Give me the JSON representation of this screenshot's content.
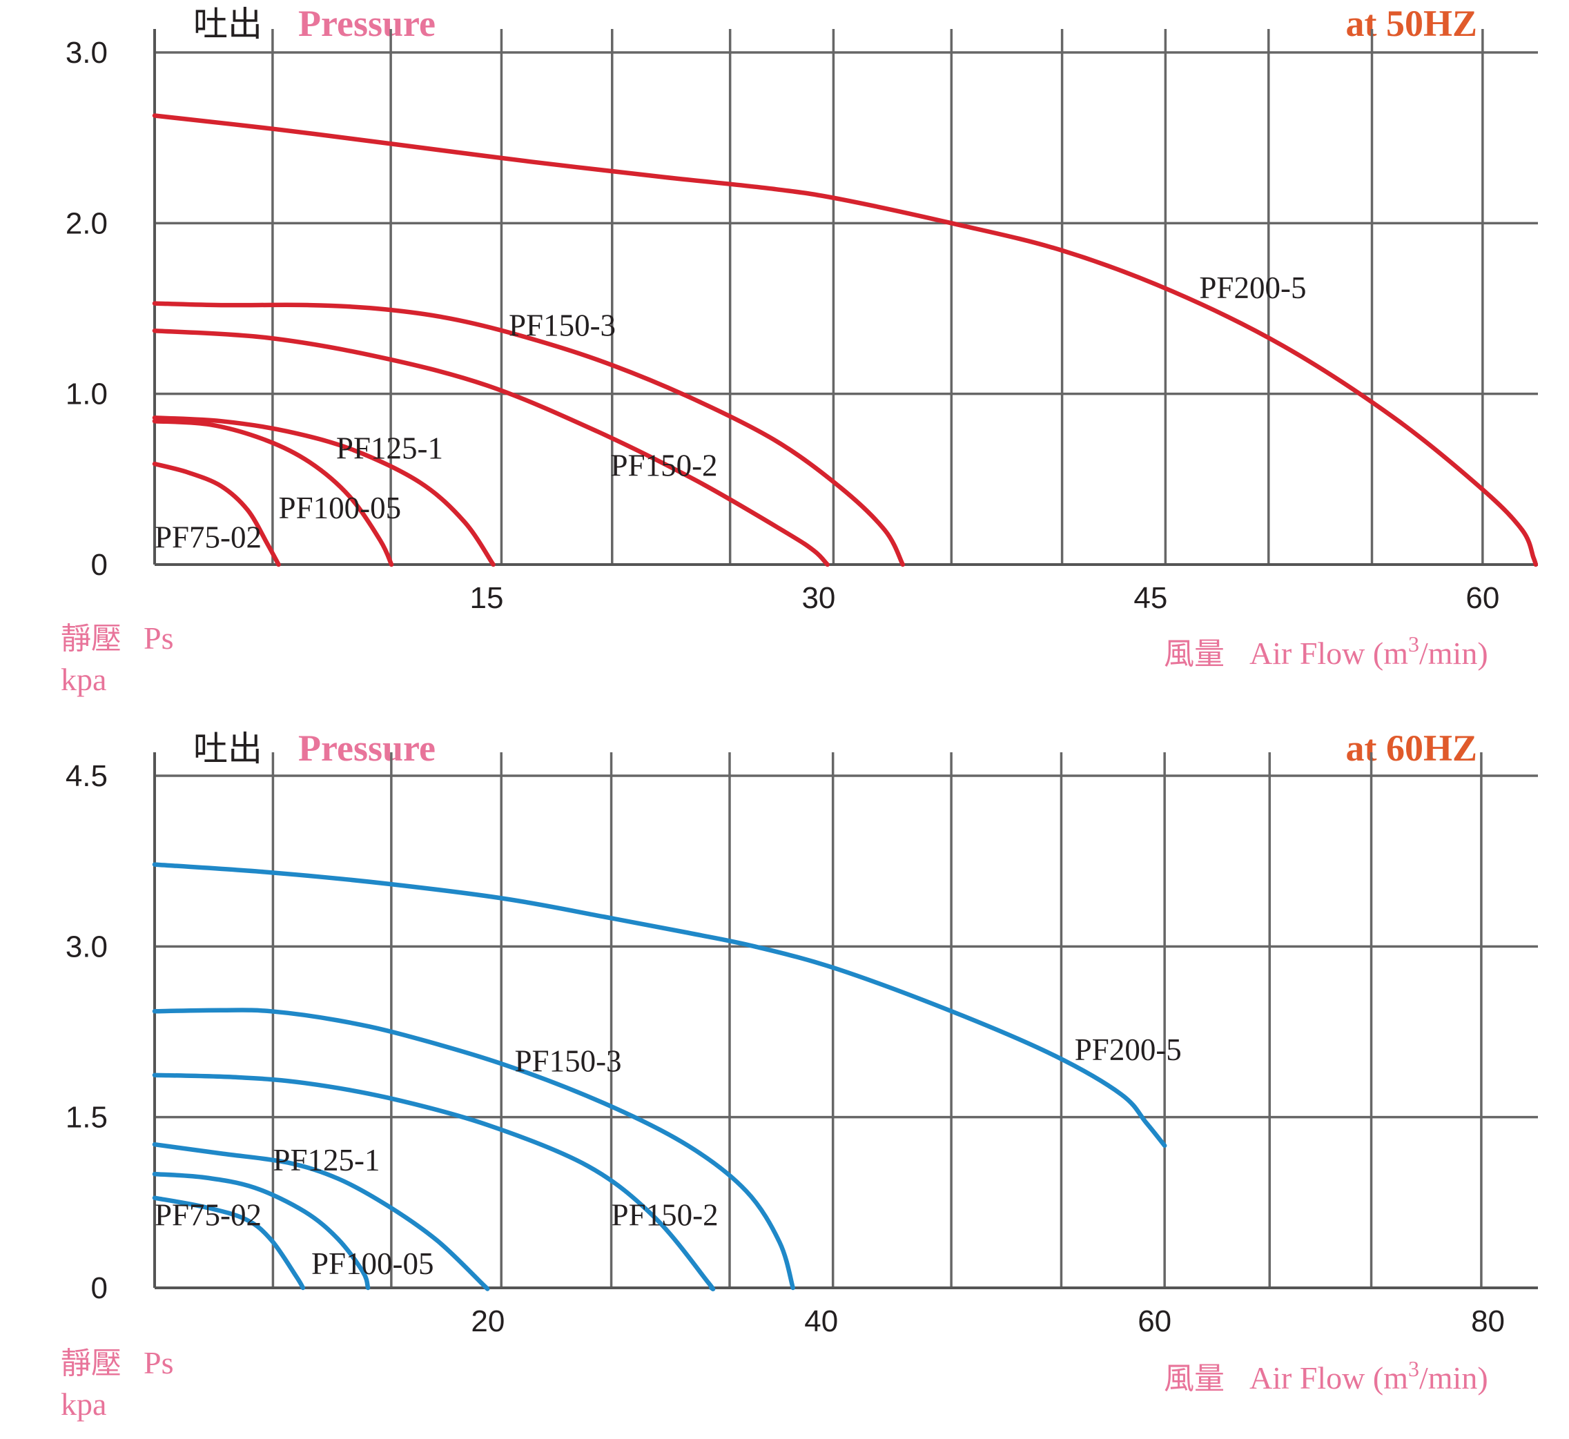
{
  "colors": {
    "pink": "#e8749a",
    "orange": "#e05a2b"
  },
  "chart_data": [
    {
      "type": "line",
      "title_cn": "吐出",
      "title_en": "Pressure",
      "frequency": "at  50HZ",
      "ylabel_cn": "靜壓",
      "ylabel_en": "Ps",
      "yunit": "kpa",
      "xlabel_cn": "風量",
      "xlabel_en": "Air Flow (m",
      "xlabel_sup": "3",
      "xlabel_end": "/min)",
      "xlim": [
        0,
        62.5
      ],
      "ylim": [
        0,
        3.0
      ],
      "x_gridlines": [
        5.33,
        10.67,
        15.67,
        20.67,
        26.0,
        30.67,
        36.0,
        41.0,
        45.67,
        50.33,
        55.0,
        60.0
      ],
      "y_gridlines": [
        0,
        1.0,
        2.0,
        3.0
      ],
      "x_ticks": [
        {
          "v": 15,
          "label": "15"
        },
        {
          "v": 30,
          "label": "30"
        },
        {
          "v": 45,
          "label": "45"
        },
        {
          "v": 60,
          "label": "60"
        }
      ],
      "y_ticks": [
        {
          "v": 0,
          "label": "0"
        },
        {
          "v": 1.0,
          "label": "1.0"
        },
        {
          "v": 2.0,
          "label": "2.0"
        },
        {
          "v": 3.0,
          "label": "3.0"
        }
      ],
      "line_color": "#d6232e",
      "series": [
        {
          "name": "PF200-5",
          "label_at": [
            47.2,
            1.56
          ],
          "points": [
            [
              0,
              2.63
            ],
            [
              5.5,
              2.55
            ],
            [
              11,
              2.46
            ],
            [
              17,
              2.36
            ],
            [
              23,
              2.27
            ],
            [
              28,
              2.2
            ],
            [
              31,
              2.14
            ],
            [
              36,
              2.0
            ],
            [
              41,
              1.84
            ],
            [
              46,
              1.6
            ],
            [
              51,
              1.28
            ],
            [
              56,
              0.86
            ],
            [
              60,
              0.44
            ],
            [
              61.8,
              0.2
            ],
            [
              62.3,
              0.04
            ],
            [
              62.4,
              0
            ]
          ]
        },
        {
          "name": "PF150-3",
          "label_at": [
            16.0,
            1.34
          ],
          "points": [
            [
              0,
              1.53
            ],
            [
              3,
              1.52
            ],
            [
              7,
              1.52
            ],
            [
              10,
              1.5
            ],
            [
              13,
              1.45
            ],
            [
              16,
              1.36
            ],
            [
              20,
              1.2
            ],
            [
              24,
              0.99
            ],
            [
              28,
              0.73
            ],
            [
              31,
              0.45
            ],
            [
              33,
              0.2
            ],
            [
              33.8,
              0
            ]
          ]
        },
        {
          "name": "PF150-2",
          "label_at": [
            20.6,
            0.52
          ],
          "points": [
            [
              0,
              1.37
            ],
            [
              5,
              1.33
            ],
            [
              10,
              1.22
            ],
            [
              15,
              1.05
            ],
            [
              20,
              0.78
            ],
            [
              24.5,
              0.49
            ],
            [
              28.5,
              0.19
            ],
            [
              29.8,
              0.08
            ],
            [
              30.4,
              0
            ]
          ]
        },
        {
          "name": "PF125-1",
          "label_at": [
            8.2,
            0.62
          ],
          "points": [
            [
              0,
              0.86
            ],
            [
              3,
              0.84
            ],
            [
              6,
              0.78
            ],
            [
              9,
              0.67
            ],
            [
              12,
              0.48
            ],
            [
              14,
              0.25
            ],
            [
              15.3,
              0
            ]
          ]
        },
        {
          "name": "PF100-05",
          "label_at": [
            5.6,
            0.27
          ],
          "points": [
            [
              0,
              0.84
            ],
            [
              2.5,
              0.82
            ],
            [
              5,
              0.73
            ],
            [
              7,
              0.6
            ],
            [
              8.8,
              0.4
            ],
            [
              10.2,
              0.14
            ],
            [
              10.7,
              0
            ]
          ]
        },
        {
          "name": "PF75-02",
          "label_at": [
            0,
            0.1
          ],
          "points": [
            [
              0,
              0.59
            ],
            [
              1.5,
              0.54
            ],
            [
              3,
              0.46
            ],
            [
              4.2,
              0.32
            ],
            [
              5.1,
              0.12
            ],
            [
              5.6,
              0
            ]
          ]
        }
      ]
    },
    {
      "type": "line",
      "title_cn": "吐出",
      "title_en": "Pressure",
      "frequency": "at  60HZ",
      "ylabel_cn": "靜壓",
      "ylabel_en": "Ps",
      "yunit": "kpa",
      "xlabel_cn": "風量",
      "xlabel_en": "Air Flow (m",
      "xlabel_sup": "3",
      "xlabel_end": "/min)",
      "xlim": [
        0,
        83
      ],
      "ylim": [
        0,
        4.5
      ],
      "x_gridlines": [
        7.1,
        14.2,
        20.8,
        27.4,
        34.5,
        40.7,
        47.8,
        54.4,
        60.6,
        66.9,
        73.0,
        79.6
      ],
      "y_gridlines": [
        0,
        1.5,
        3.0,
        4.5
      ],
      "x_ticks": [
        {
          "v": 20,
          "label": "20"
        },
        {
          "v": 40,
          "label": "40"
        },
        {
          "v": 60,
          "label": "60"
        },
        {
          "v": 80,
          "label": "80"
        }
      ],
      "y_ticks": [
        {
          "v": 0,
          "label": "0"
        },
        {
          "v": 1.5,
          "label": "1.5"
        },
        {
          "v": 3.0,
          "label": "3.0"
        },
        {
          "v": 4.5,
          "label": "4.5"
        }
      ],
      "line_color": "#1f88c8",
      "series": [
        {
          "name": "PF200-5",
          "label_at": [
            55.2,
            2.0
          ],
          "points": [
            [
              0,
              3.72
            ],
            [
              7,
              3.65
            ],
            [
              14,
              3.55
            ],
            [
              21,
              3.42
            ],
            [
              27,
              3.26
            ],
            [
              32,
              3.12
            ],
            [
              36,
              3.0
            ],
            [
              41,
              2.8
            ],
            [
              48,
              2.42
            ],
            [
              54,
              2.04
            ],
            [
              58,
              1.7
            ],
            [
              59.5,
              1.45
            ],
            [
              60.6,
              1.25
            ]
          ]
        },
        {
          "name": "PF150-3",
          "label_at": [
            21.6,
            1.9
          ],
          "points": [
            [
              0,
              2.43
            ],
            [
              4,
              2.44
            ],
            [
              7,
              2.43
            ],
            [
              11,
              2.35
            ],
            [
              15,
              2.22
            ],
            [
              21,
              1.96
            ],
            [
              27,
              1.62
            ],
            [
              32,
              1.25
            ],
            [
              35.5,
              0.85
            ],
            [
              37.5,
              0.4
            ],
            [
              38.3,
              0
            ]
          ]
        },
        {
          "name": "PF150-2",
          "label_at": [
            27.4,
            0.55
          ],
          "points": [
            [
              0,
              1.87
            ],
            [
              5,
              1.85
            ],
            [
              9,
              1.8
            ],
            [
              14,
              1.67
            ],
            [
              20,
              1.43
            ],
            [
              26,
              1.07
            ],
            [
              30,
              0.62
            ],
            [
              33.2,
              0.05
            ],
            [
              33.4,
              0
            ]
          ]
        },
        {
          "name": "PF125-1",
          "label_at": [
            7.1,
            1.03
          ],
          "points": [
            [
              0,
              1.26
            ],
            [
              4,
              1.18
            ],
            [
              8,
              1.1
            ],
            [
              11,
              0.96
            ],
            [
              14,
              0.72
            ],
            [
              17,
              0.41
            ],
            [
              19.7,
              0.03
            ],
            [
              19.9,
              0
            ]
          ]
        },
        {
          "name": "PF100-05",
          "label_at": [
            9.4,
            0.12
          ],
          "points": [
            [
              0,
              1.0
            ],
            [
              3,
              0.97
            ],
            [
              6,
              0.88
            ],
            [
              9,
              0.67
            ],
            [
              11,
              0.43
            ],
            [
              12.5,
              0.14
            ],
            [
              12.8,
              0
            ]
          ]
        },
        {
          "name": "PF75-02",
          "label_at": [
            0,
            0.55
          ],
          "points": [
            [
              0,
              0.79
            ],
            [
              3,
              0.71
            ],
            [
              5.5,
              0.6
            ],
            [
              7,
              0.42
            ],
            [
              8.5,
              0.1
            ],
            [
              8.9,
              0
            ]
          ]
        }
      ]
    }
  ]
}
